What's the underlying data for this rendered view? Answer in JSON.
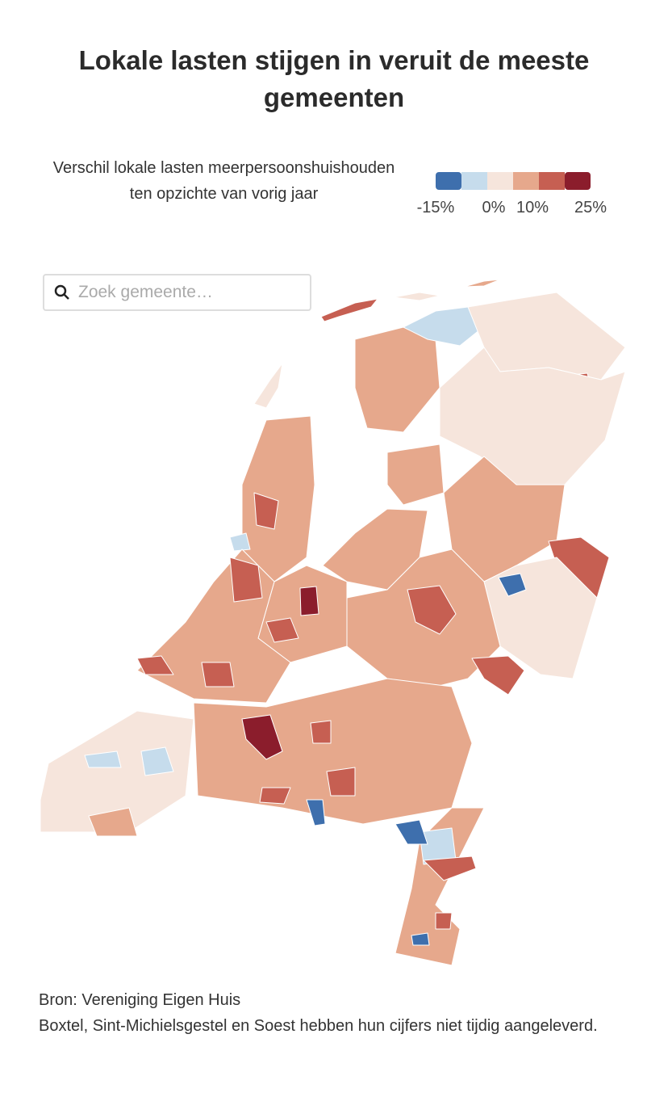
{
  "header": {
    "title": "Lokale lasten stijgen in veruit de meeste gemeenten"
  },
  "legend": {
    "title": "Verschil lokale lasten meerpersoonshuishouden ten opzichte van vorig jaar",
    "colors": [
      "#3e6fad",
      "#c6dcec",
      "#f6e5dc",
      "#e6a88c",
      "#c65f52",
      "#8b1d2c"
    ],
    "labels": [
      "-15%",
      "0%",
      "10%",
      "25%"
    ]
  },
  "search": {
    "placeholder": "Zoek gemeente…"
  },
  "footer": {
    "source": "Bron: Vereniging Eigen Huis",
    "note": "Boxtel, Sint-Michielsgestel en Soest hebben hun cijfers niet tijdig aangeleverd."
  }
}
